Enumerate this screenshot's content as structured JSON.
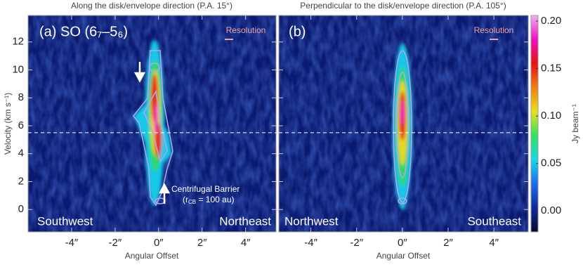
{
  "chart_data": [
    {
      "type": "heatmap",
      "title": "Along the disk/envelope direction (P.A. 15°)",
      "panel_label": "(a) SO (6₇–5₆)",
      "xlabel": "Angular Offset",
      "ylabel": "Velocity (km s⁻¹)",
      "xlim": [
        -6.0,
        5.4
      ],
      "ylim": [
        -1.6,
        13.9
      ],
      "xticks": [
        {
          "value": -4,
          "label": "-4″"
        },
        {
          "value": -2,
          "label": "-2″"
        },
        {
          "value": 0,
          "label": "0″"
        },
        {
          "value": 2,
          "label": "2″"
        },
        {
          "value": 4,
          "label": "4″"
        }
      ],
      "yticks": [
        0,
        2,
        4,
        6,
        8,
        10,
        12
      ],
      "ytick_labels": true,
      "vsys": 5.5,
      "direction_labels": [
        "Southwest",
        "Northeast"
      ],
      "resolution_label": "Resolution",
      "annotation": {
        "title": "Centrifugal Barrier",
        "prefix": "(r",
        "subscript": "CB",
        "suffix": " = 100 au)"
      }
    },
    {
      "type": "heatmap",
      "title": "Perpendicular to the disk/envelope direction (P.A. 105°)",
      "panel_label": "(b)",
      "xlabel": "Angular Offset",
      "xlim": [
        -5.4,
        5.5
      ],
      "ylim": [
        -1.6,
        13.9
      ],
      "xticks": [
        {
          "value": -4,
          "label": "-4″"
        },
        {
          "value": -2,
          "label": "-2″"
        },
        {
          "value": 0,
          "label": "0″"
        },
        {
          "value": 2,
          "label": "2″"
        },
        {
          "value": 4,
          "label": "4″"
        }
      ],
      "yticks": [
        0,
        2,
        4,
        6,
        8,
        10,
        12
      ],
      "ytick_labels": false,
      "vsys": 5.5,
      "direction_labels": [
        "Northwest",
        "Southeast"
      ],
      "resolution_label": "Resolution"
    }
  ],
  "colorbar": {
    "label": "Jy beam⁻¹",
    "lim": [
      -0.022,
      0.206
    ],
    "ticks": [
      {
        "value": 0,
        "label": "0.00"
      },
      {
        "value": 0.05,
        "label": "0.05"
      },
      {
        "value": 0.1,
        "label": "0.10"
      },
      {
        "value": 0.15,
        "label": "0.15"
      },
      {
        "value": 0.2,
        "label": "0.20"
      }
    ],
    "colors": [
      "#0a0a30",
      "#0d2a9a",
      "#1a6cf0",
      "#18d8e8",
      "#30e060",
      "#e8e020",
      "#f08010",
      "#e81010",
      "#f010c0",
      "#f0b0f0"
    ]
  }
}
